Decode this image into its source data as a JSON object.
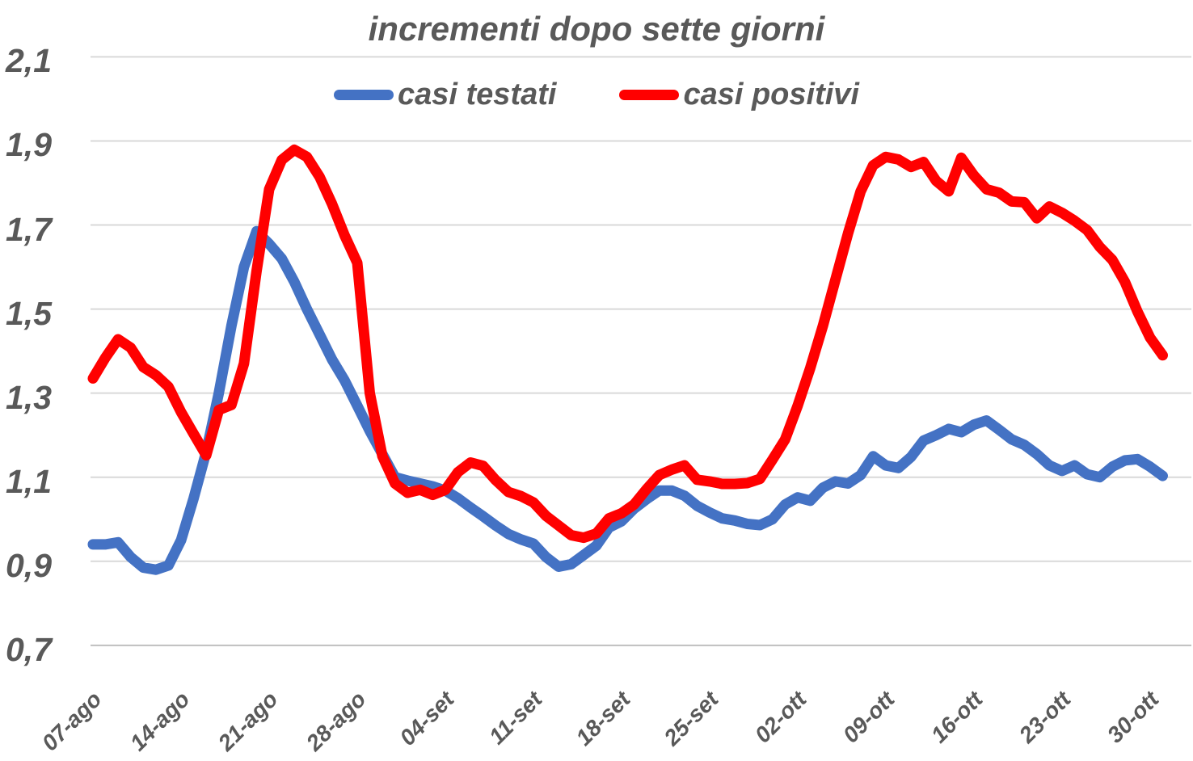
{
  "title": "incrementi dopo sette giorni",
  "legend": {
    "items": [
      {
        "label": "casi testati",
        "color": "#4472C4"
      },
      {
        "label": "casi positivi",
        "color": "#FF0000"
      }
    ]
  },
  "colors": {
    "text_gray": "#595959",
    "gridline": "#D9D9D9",
    "axis_line": "#BFBFBF",
    "background": "#FFFFFF"
  },
  "chart_data": {
    "type": "line",
    "title": "incrementi dopo sette giorni",
    "xlabel": "",
    "ylabel": "",
    "ylim": [
      0.7,
      2.1
    ],
    "y_tick_step": 0.2,
    "y_tick_labels": [
      "2,1",
      "1,9",
      "1,7",
      "1,5",
      "1,3",
      "1,1",
      "0,9",
      "0,7"
    ],
    "x_tick_labels": [
      "07-ago",
      "14-ago",
      "21-ago",
      "28-ago",
      "04-set",
      "11-set",
      "18-set",
      "25-set",
      "02-ott",
      "09-ott",
      "16-ott",
      "23-ott",
      "30-ott"
    ],
    "x_tick_day_indices": [
      0,
      7,
      14,
      21,
      28,
      35,
      42,
      49,
      56,
      63,
      70,
      77,
      84
    ],
    "x_frequency": "daily",
    "grid": "horizontal",
    "legend_position": "top-center",
    "series": [
      {
        "name": "casi testati",
        "color": "#4472C4",
        "values": [
          0.94,
          0.94,
          0.945,
          0.91,
          0.885,
          0.88,
          0.89,
          0.95,
          1.05,
          1.16,
          1.3,
          1.46,
          1.6,
          1.685,
          1.655,
          1.62,
          1.565,
          1.5,
          1.44,
          1.38,
          1.33,
          1.27,
          1.21,
          1.155,
          1.1,
          1.092,
          1.085,
          1.078,
          1.068,
          1.05,
          1.028,
          1.007,
          0.985,
          0.965,
          0.952,
          0.942,
          0.91,
          0.887,
          0.893,
          0.915,
          0.937,
          0.98,
          0.995,
          1.025,
          1.048,
          1.068,
          1.068,
          1.056,
          1.032,
          1.016,
          1.002,
          0.997,
          0.989,
          0.986,
          1.0,
          1.035,
          1.052,
          1.044,
          1.075,
          1.09,
          1.085,
          1.105,
          1.15,
          1.128,
          1.122,
          1.148,
          1.187,
          1.2,
          1.215,
          1.207,
          1.225,
          1.235,
          1.213,
          1.19,
          1.177,
          1.155,
          1.128,
          1.115,
          1.128,
          1.107,
          1.1,
          1.125,
          1.14,
          1.143,
          1.125,
          1.103
        ]
      },
      {
        "name": "casi positivi",
        "color": "#FF0000",
        "values": [
          1.335,
          1.385,
          1.428,
          1.408,
          1.362,
          1.343,
          1.315,
          1.255,
          1.203,
          1.152,
          1.26,
          1.272,
          1.37,
          1.59,
          1.785,
          1.855,
          1.879,
          1.862,
          1.815,
          1.75,
          1.675,
          1.61,
          1.3,
          1.15,
          1.085,
          1.063,
          1.07,
          1.058,
          1.07,
          1.112,
          1.135,
          1.127,
          1.093,
          1.065,
          1.055,
          1.04,
          1.008,
          0.985,
          0.962,
          0.956,
          0.966,
          1.002,
          1.014,
          1.035,
          1.072,
          1.105,
          1.118,
          1.128,
          1.094,
          1.09,
          1.084,
          1.084,
          1.086,
          1.096,
          1.142,
          1.19,
          1.27,
          1.36,
          1.46,
          1.57,
          1.68,
          1.78,
          1.842,
          1.862,
          1.856,
          1.838,
          1.85,
          1.805,
          1.78,
          1.86,
          1.818,
          1.785,
          1.777,
          1.756,
          1.754,
          1.716,
          1.744,
          1.729,
          1.71,
          1.688,
          1.648,
          1.617,
          1.565,
          1.494,
          1.432,
          1.39
        ]
      }
    ]
  }
}
